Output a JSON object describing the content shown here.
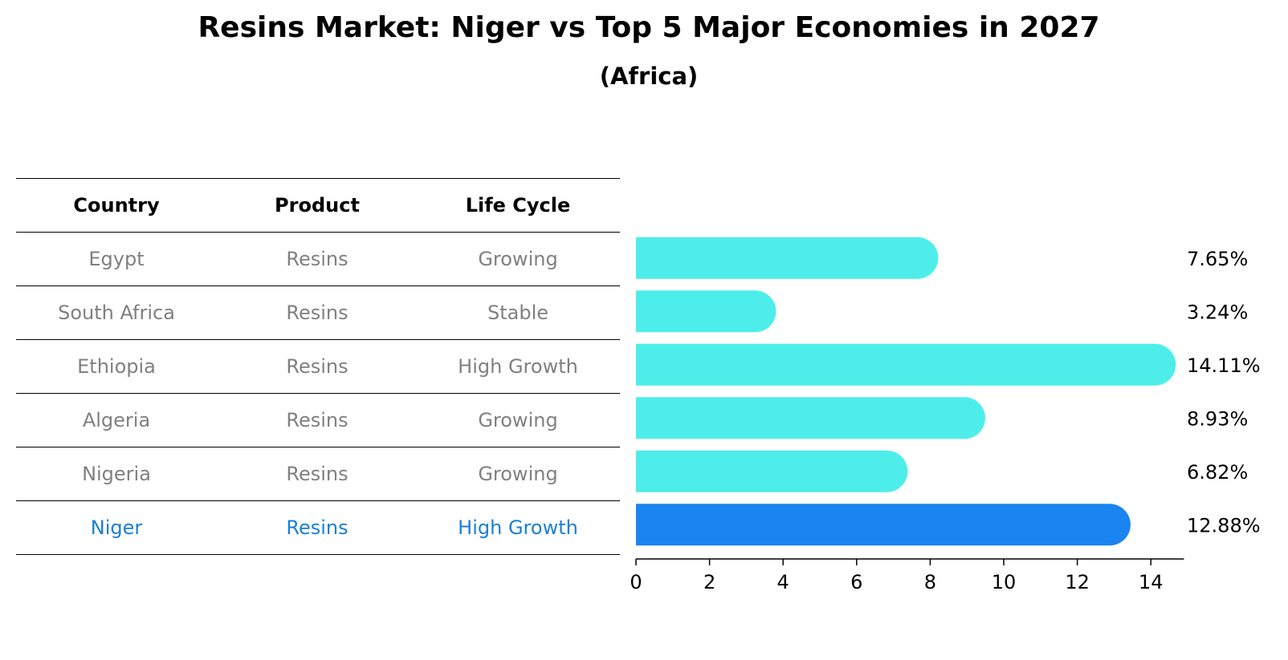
{
  "title": "Resins Market: Niger vs Top 5 Major Economies in 2027",
  "subtitle": "(Africa)",
  "table": {
    "headers": [
      "Country",
      "Product",
      "Life Cycle"
    ],
    "rows": [
      {
        "country": "Egypt",
        "product": "Resins",
        "life_cycle": "Growing"
      },
      {
        "country": "South Africa",
        "product": "Resins",
        "life_cycle": "Stable"
      },
      {
        "country": "Ethiopia",
        "product": "Resins",
        "life_cycle": "High Growth"
      },
      {
        "country": "Algeria",
        "product": "Resins",
        "life_cycle": "Growing"
      },
      {
        "country": "Nigeria",
        "product": "Resins",
        "life_cycle": "Growing"
      },
      {
        "country": "Niger",
        "product": "Resins",
        "life_cycle": "High Growth"
      }
    ]
  },
  "chart_data": {
    "type": "bar",
    "orientation": "horizontal",
    "categories": [
      "Egypt",
      "South Africa",
      "Ethiopia",
      "Algeria",
      "Nigeria",
      "Niger"
    ],
    "values": [
      7.65,
      3.24,
      14.11,
      8.93,
      6.82,
      12.88
    ],
    "value_labels": [
      "7.65%",
      "3.24%",
      "14.11%",
      "8.93%",
      "6.82%",
      "12.88%"
    ],
    "highlight": "Niger",
    "xlim": [
      0,
      14.9
    ],
    "xticks": [
      0,
      2,
      4,
      6,
      8,
      10,
      12,
      14
    ],
    "xtick_labels": [
      "0",
      "2",
      "4",
      "6",
      "8",
      "10",
      "12",
      "14"
    ],
    "colors": {
      "default": "#4deeea",
      "highlight": "#1a84f0",
      "text_muted": "#808080",
      "text_highlight": "#1a7fd4"
    }
  }
}
